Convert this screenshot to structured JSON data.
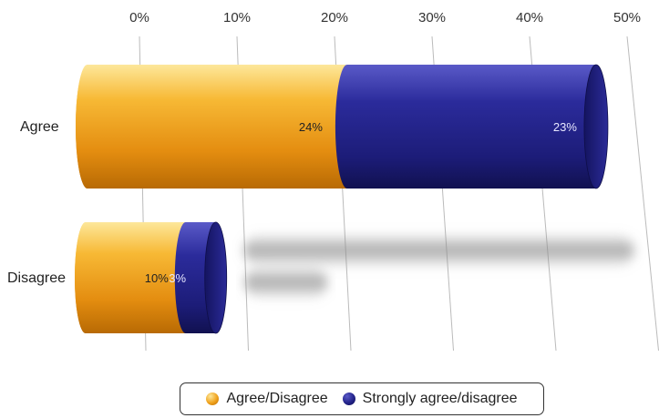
{
  "chart_data": {
    "type": "bar",
    "orientation": "horizontal",
    "stacked": true,
    "style": "3d-cylinder",
    "categories": [
      "Agree",
      "Disagree"
    ],
    "series": [
      {
        "name": "Agree/Disagree",
        "values": [
          24,
          10
        ],
        "labels": [
          "24%",
          "10%"
        ],
        "color": "#f0a21c"
      },
      {
        "name": "Strongly agree/disagree",
        "values": [
          23,
          3
        ],
        "labels": [
          "23%",
          "3%"
        ],
        "color": "#23238a"
      }
    ],
    "xaxis": {
      "ticks": [
        "0%",
        "10%",
        "20%",
        "30%",
        "40%",
        "50%"
      ],
      "tick_values": [
        0,
        10,
        20,
        30,
        40,
        50
      ],
      "position": "top"
    },
    "xlim": [
      0,
      50
    ],
    "grid": true,
    "legend_position": "bottom"
  },
  "colors": {
    "orange": "#f0a21c",
    "navy": "#23238a",
    "gridline": "#bbbbbb"
  }
}
